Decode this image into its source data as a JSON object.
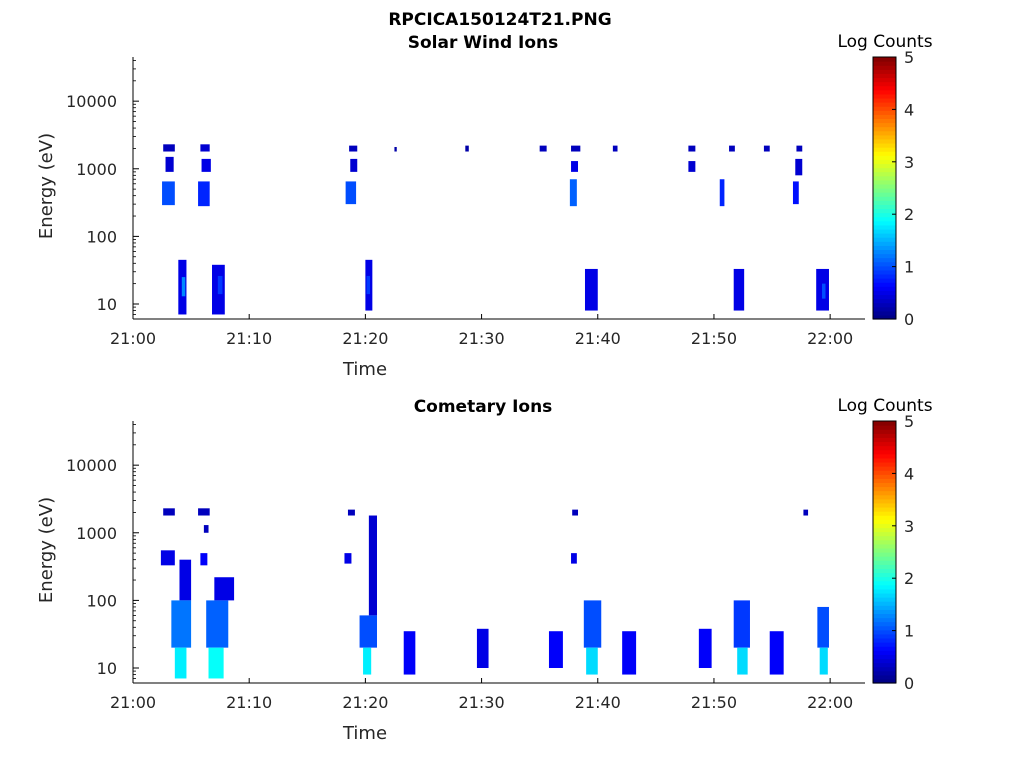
{
  "figure_title": "RPCICA150124T21.PNG",
  "colorbar": {
    "label": "Log Counts",
    "ticks": [
      "0",
      "1",
      "2",
      "3",
      "4",
      "5"
    ],
    "range": [
      0,
      5
    ],
    "colormap": "jet"
  },
  "chart_data": [
    {
      "type": "heatmap",
      "title": "Solar Wind Ions",
      "xlabel": "Time",
      "ylabel": "Energy (eV)",
      "y_scale": "log",
      "xlim": [
        "21:00",
        "22:03"
      ],
      "ylim": [
        6,
        45000
      ],
      "x_ticks": [
        "21:00",
        "21:10",
        "21:20",
        "21:30",
        "21:40",
        "21:50",
        "22:00"
      ],
      "y_ticks": [
        "10",
        "100",
        "1000",
        "10000"
      ],
      "colorbar_label": "Log Counts",
      "clim": [
        0,
        5
      ],
      "cells": [
        {
          "t0": "21:02.6",
          "t1": "21:03.6",
          "e0": 1800,
          "e1": 2300,
          "v": 0.3
        },
        {
          "t0": "21:02.8",
          "t1": "21:03.5",
          "e0": 900,
          "e1": 1500,
          "v": 0.4
        },
        {
          "t0": "21:02.5",
          "t1": "21:03.6",
          "e0": 290,
          "e1": 650,
          "v": 1.0
        },
        {
          "t0": "21:05.8",
          "t1": "21:06.6",
          "e0": 1800,
          "e1": 2300,
          "v": 0.4
        },
        {
          "t0": "21:05.9",
          "t1": "21:06.7",
          "e0": 900,
          "e1": 1400,
          "v": 0.5
        },
        {
          "t0": "21:05.6",
          "t1": "21:06.6",
          "e0": 280,
          "e1": 650,
          "v": 0.8
        },
        {
          "t0": "21:03.9",
          "t1": "21:04.6",
          "e0": 7,
          "e1": 45,
          "v": 0.5
        },
        {
          "t0": "21:04.2",
          "t1": "21:04.5",
          "e0": 13,
          "e1": 25,
          "v": 1.3
        },
        {
          "t0": "21:06.8",
          "t1": "21:07.9",
          "e0": 7,
          "e1": 38,
          "v": 0.5
        },
        {
          "t0": "21:07.3",
          "t1": "21:07.7",
          "e0": 14,
          "e1": 26,
          "v": 0.9
        },
        {
          "t0": "21:18.6",
          "t1": "21:19.3",
          "e0": 1800,
          "e1": 2200,
          "v": 0.3
        },
        {
          "t0": "21:18.7",
          "t1": "21:19.3",
          "e0": 900,
          "e1": 1400,
          "v": 0.4
        },
        {
          "t0": "21:18.3",
          "t1": "21:19.2",
          "e0": 300,
          "e1": 650,
          "v": 1.0
        },
        {
          "t0": "21:20.0",
          "t1": "21:20.6",
          "e0": 8,
          "e1": 45,
          "v": 0.5
        },
        {
          "t0": "21:20.1",
          "t1": "21:20.4",
          "e0": 14,
          "e1": 26,
          "v": 0.9
        },
        {
          "t0": "21:22.5",
          "t1": "21:22.7",
          "e0": 1800,
          "e1": 2100,
          "v": 0.2
        },
        {
          "t0": "21:28.6",
          "t1": "21:28.9",
          "e0": 1800,
          "e1": 2200,
          "v": 0.2
        },
        {
          "t0": "21:35.0",
          "t1": "21:35.6",
          "e0": 1800,
          "e1": 2200,
          "v": 0.3
        },
        {
          "t0": "21:37.7",
          "t1": "21:38.5",
          "e0": 1800,
          "e1": 2200,
          "v": 0.3
        },
        {
          "t0": "21:37.7",
          "t1": "21:38.3",
          "e0": 900,
          "e1": 1300,
          "v": 0.5
        },
        {
          "t0": "21:37.6",
          "t1": "21:38.2",
          "e0": 280,
          "e1": 700,
          "v": 1.1
        },
        {
          "t0": "21:38.9",
          "t1": "21:40.0",
          "e0": 8,
          "e1": 33,
          "v": 0.5
        },
        {
          "t0": "21:41.3",
          "t1": "21:41.7",
          "e0": 1800,
          "e1": 2200,
          "v": 0.3
        },
        {
          "t0": "21:47.8",
          "t1": "21:48.4",
          "e0": 1800,
          "e1": 2200,
          "v": 0.3
        },
        {
          "t0": "21:47.8",
          "t1": "21:48.4",
          "e0": 900,
          "e1": 1300,
          "v": 0.4
        },
        {
          "t0": "21:50.5",
          "t1": "21:50.9",
          "e0": 280,
          "e1": 700,
          "v": 0.8
        },
        {
          "t0": "21:51.3",
          "t1": "21:51.8",
          "e0": 1800,
          "e1": 2200,
          "v": 0.3
        },
        {
          "t0": "21:51.7",
          "t1": "21:52.6",
          "e0": 8,
          "e1": 33,
          "v": 0.5
        },
        {
          "t0": "21:54.3",
          "t1": "21:54.8",
          "e0": 1800,
          "e1": 2200,
          "v": 0.3
        },
        {
          "t0": "21:57.1",
          "t1": "21:57.6",
          "e0": 1800,
          "e1": 2200,
          "v": 0.3
        },
        {
          "t0": "21:57.0",
          "t1": "21:57.6",
          "e0": 800,
          "e1": 1400,
          "v": 0.4
        },
        {
          "t0": "21:56.8",
          "t1": "21:57.3",
          "e0": 300,
          "e1": 650,
          "v": 0.7
        },
        {
          "t0": "21:58.8",
          "t1": "21:59.9",
          "e0": 8,
          "e1": 33,
          "v": 0.5
        },
        {
          "t0": "21:59.3",
          "t1": "21:59.6",
          "e0": 12,
          "e1": 20,
          "v": 1.0
        }
      ]
    },
    {
      "type": "heatmap",
      "title": "Cometary Ions",
      "xlabel": "Time",
      "ylabel": "Energy (eV)",
      "y_scale": "log",
      "xlim": [
        "21:00",
        "22:03"
      ],
      "ylim": [
        6,
        45000
      ],
      "x_ticks": [
        "21:00",
        "21:10",
        "21:20",
        "21:30",
        "21:40",
        "21:50",
        "22:00"
      ],
      "y_ticks": [
        "10",
        "100",
        "1000",
        "10000"
      ],
      "colorbar_label": "Log Counts",
      "clim": [
        0,
        5
      ],
      "cells": [
        {
          "t0": "21:02.6",
          "t1": "21:03.6",
          "e0": 1800,
          "e1": 2300,
          "v": 0.3
        },
        {
          "t0": "21:02.4",
          "t1": "21:03.6",
          "e0": 330,
          "e1": 550,
          "v": 0.5
        },
        {
          "t0": "21:04.0",
          "t1": "21:05.0",
          "e0": 100,
          "e1": 400,
          "v": 0.5
        },
        {
          "t0": "21:03.3",
          "t1": "21:05.0",
          "e0": 20,
          "e1": 100,
          "v": 1.2
        },
        {
          "t0": "21:03.6",
          "t1": "21:04.6",
          "e0": 7,
          "e1": 20,
          "v": 1.8
        },
        {
          "t0": "21:05.6",
          "t1": "21:06.6",
          "e0": 1800,
          "e1": 2300,
          "v": 0.3
        },
        {
          "t0": "21:06.1",
          "t1": "21:06.5",
          "e0": 1000,
          "e1": 1300,
          "v": 0.3
        },
        {
          "t0": "21:05.8",
          "t1": "21:06.4",
          "e0": 330,
          "e1": 500,
          "v": 0.6
        },
        {
          "t0": "21:07.0",
          "t1": "21:08.7",
          "e0": 100,
          "e1": 220,
          "v": 0.5
        },
        {
          "t0": "21:06.3",
          "t1": "21:08.2",
          "e0": 20,
          "e1": 100,
          "v": 1.1
        },
        {
          "t0": "21:06.5",
          "t1": "21:07.8",
          "e0": 7,
          "e1": 20,
          "v": 1.9
        },
        {
          "t0": "21:18.5",
          "t1": "21:19.1",
          "e0": 1800,
          "e1": 2200,
          "v": 0.3
        },
        {
          "t0": "21:18.2",
          "t1": "21:18.8",
          "e0": 350,
          "e1": 500,
          "v": 0.5
        },
        {
          "t0": "21:20.3",
          "t1": "21:21.0",
          "e0": 60,
          "e1": 1800,
          "v": 0.4
        },
        {
          "t0": "21:19.5",
          "t1": "21:21.0",
          "e0": 20,
          "e1": 60,
          "v": 1.0
        },
        {
          "t0": "21:19.8",
          "t1": "21:20.5",
          "e0": 8,
          "e1": 20,
          "v": 1.8
        },
        {
          "t0": "21:23.3",
          "t1": "21:24.3",
          "e0": 8,
          "e1": 35,
          "v": 0.6
        },
        {
          "t0": "21:29.6",
          "t1": "21:30.6",
          "e0": 10,
          "e1": 38,
          "v": 0.5
        },
        {
          "t0": "21:35.8",
          "t1": "21:37.0",
          "e0": 10,
          "e1": 35,
          "v": 0.6
        },
        {
          "t0": "21:37.8",
          "t1": "21:38.3",
          "e0": 1800,
          "e1": 2200,
          "v": 0.3
        },
        {
          "t0": "21:37.7",
          "t1": "21:38.2",
          "e0": 350,
          "e1": 500,
          "v": 0.5
        },
        {
          "t0": "21:38.8",
          "t1": "21:40.3",
          "e0": 20,
          "e1": 100,
          "v": 1.0
        },
        {
          "t0": "21:39.0",
          "t1": "21:40.0",
          "e0": 8,
          "e1": 20,
          "v": 1.7
        },
        {
          "t0": "21:42.1",
          "t1": "21:43.3",
          "e0": 8,
          "e1": 35,
          "v": 0.6
        },
        {
          "t0": "21:48.7",
          "t1": "21:49.8",
          "e0": 10,
          "e1": 38,
          "v": 0.6
        },
        {
          "t0": "21:51.7",
          "t1": "21:53.1",
          "e0": 20,
          "e1": 100,
          "v": 0.9
        },
        {
          "t0": "21:52.0",
          "t1": "21:52.9",
          "e0": 8,
          "e1": 20,
          "v": 1.7
        },
        {
          "t0": "21:54.8",
          "t1": "21:56.0",
          "e0": 8,
          "e1": 35,
          "v": 0.6
        },
        {
          "t0": "21:57.7",
          "t1": "21:58.1",
          "e0": 1800,
          "e1": 2200,
          "v": 0.3
        },
        {
          "t0": "21:58.9",
          "t1": "21:59.9",
          "e0": 20,
          "e1": 80,
          "v": 1.0
        },
        {
          "t0": "21:59.1",
          "t1": "21:59.8",
          "e0": 8,
          "e1": 20,
          "v": 1.7
        }
      ]
    }
  ]
}
